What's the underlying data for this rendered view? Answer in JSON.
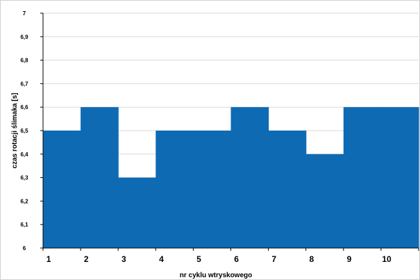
{
  "chart_data": {
    "type": "area",
    "title": "",
    "xlabel": "nr cyklu wtryskowego",
    "ylabel": "czas rotacji ślimaka  [s]",
    "categories": [
      "1",
      "2",
      "3",
      "4",
      "5",
      "6",
      "7",
      "8",
      "9",
      "10"
    ],
    "values": [
      6.5,
      6.6,
      6.3,
      6.5,
      6.5,
      6.6,
      6.5,
      6.4,
      6.6,
      6.6
    ],
    "ylim": [
      6,
      7
    ],
    "yticks": [
      "6",
      "6,1",
      "6,2",
      "6,3",
      "6,4",
      "6,5",
      "6,6",
      "6,7",
      "6,8",
      "6,9",
      "7"
    ],
    "step_shape": true,
    "grid": true,
    "legend": "none",
    "colors": {
      "fill": "#0f6ab4",
      "grid": "#d9d9d9",
      "axis": "#000000",
      "frame": "#d0d0d0"
    }
  }
}
